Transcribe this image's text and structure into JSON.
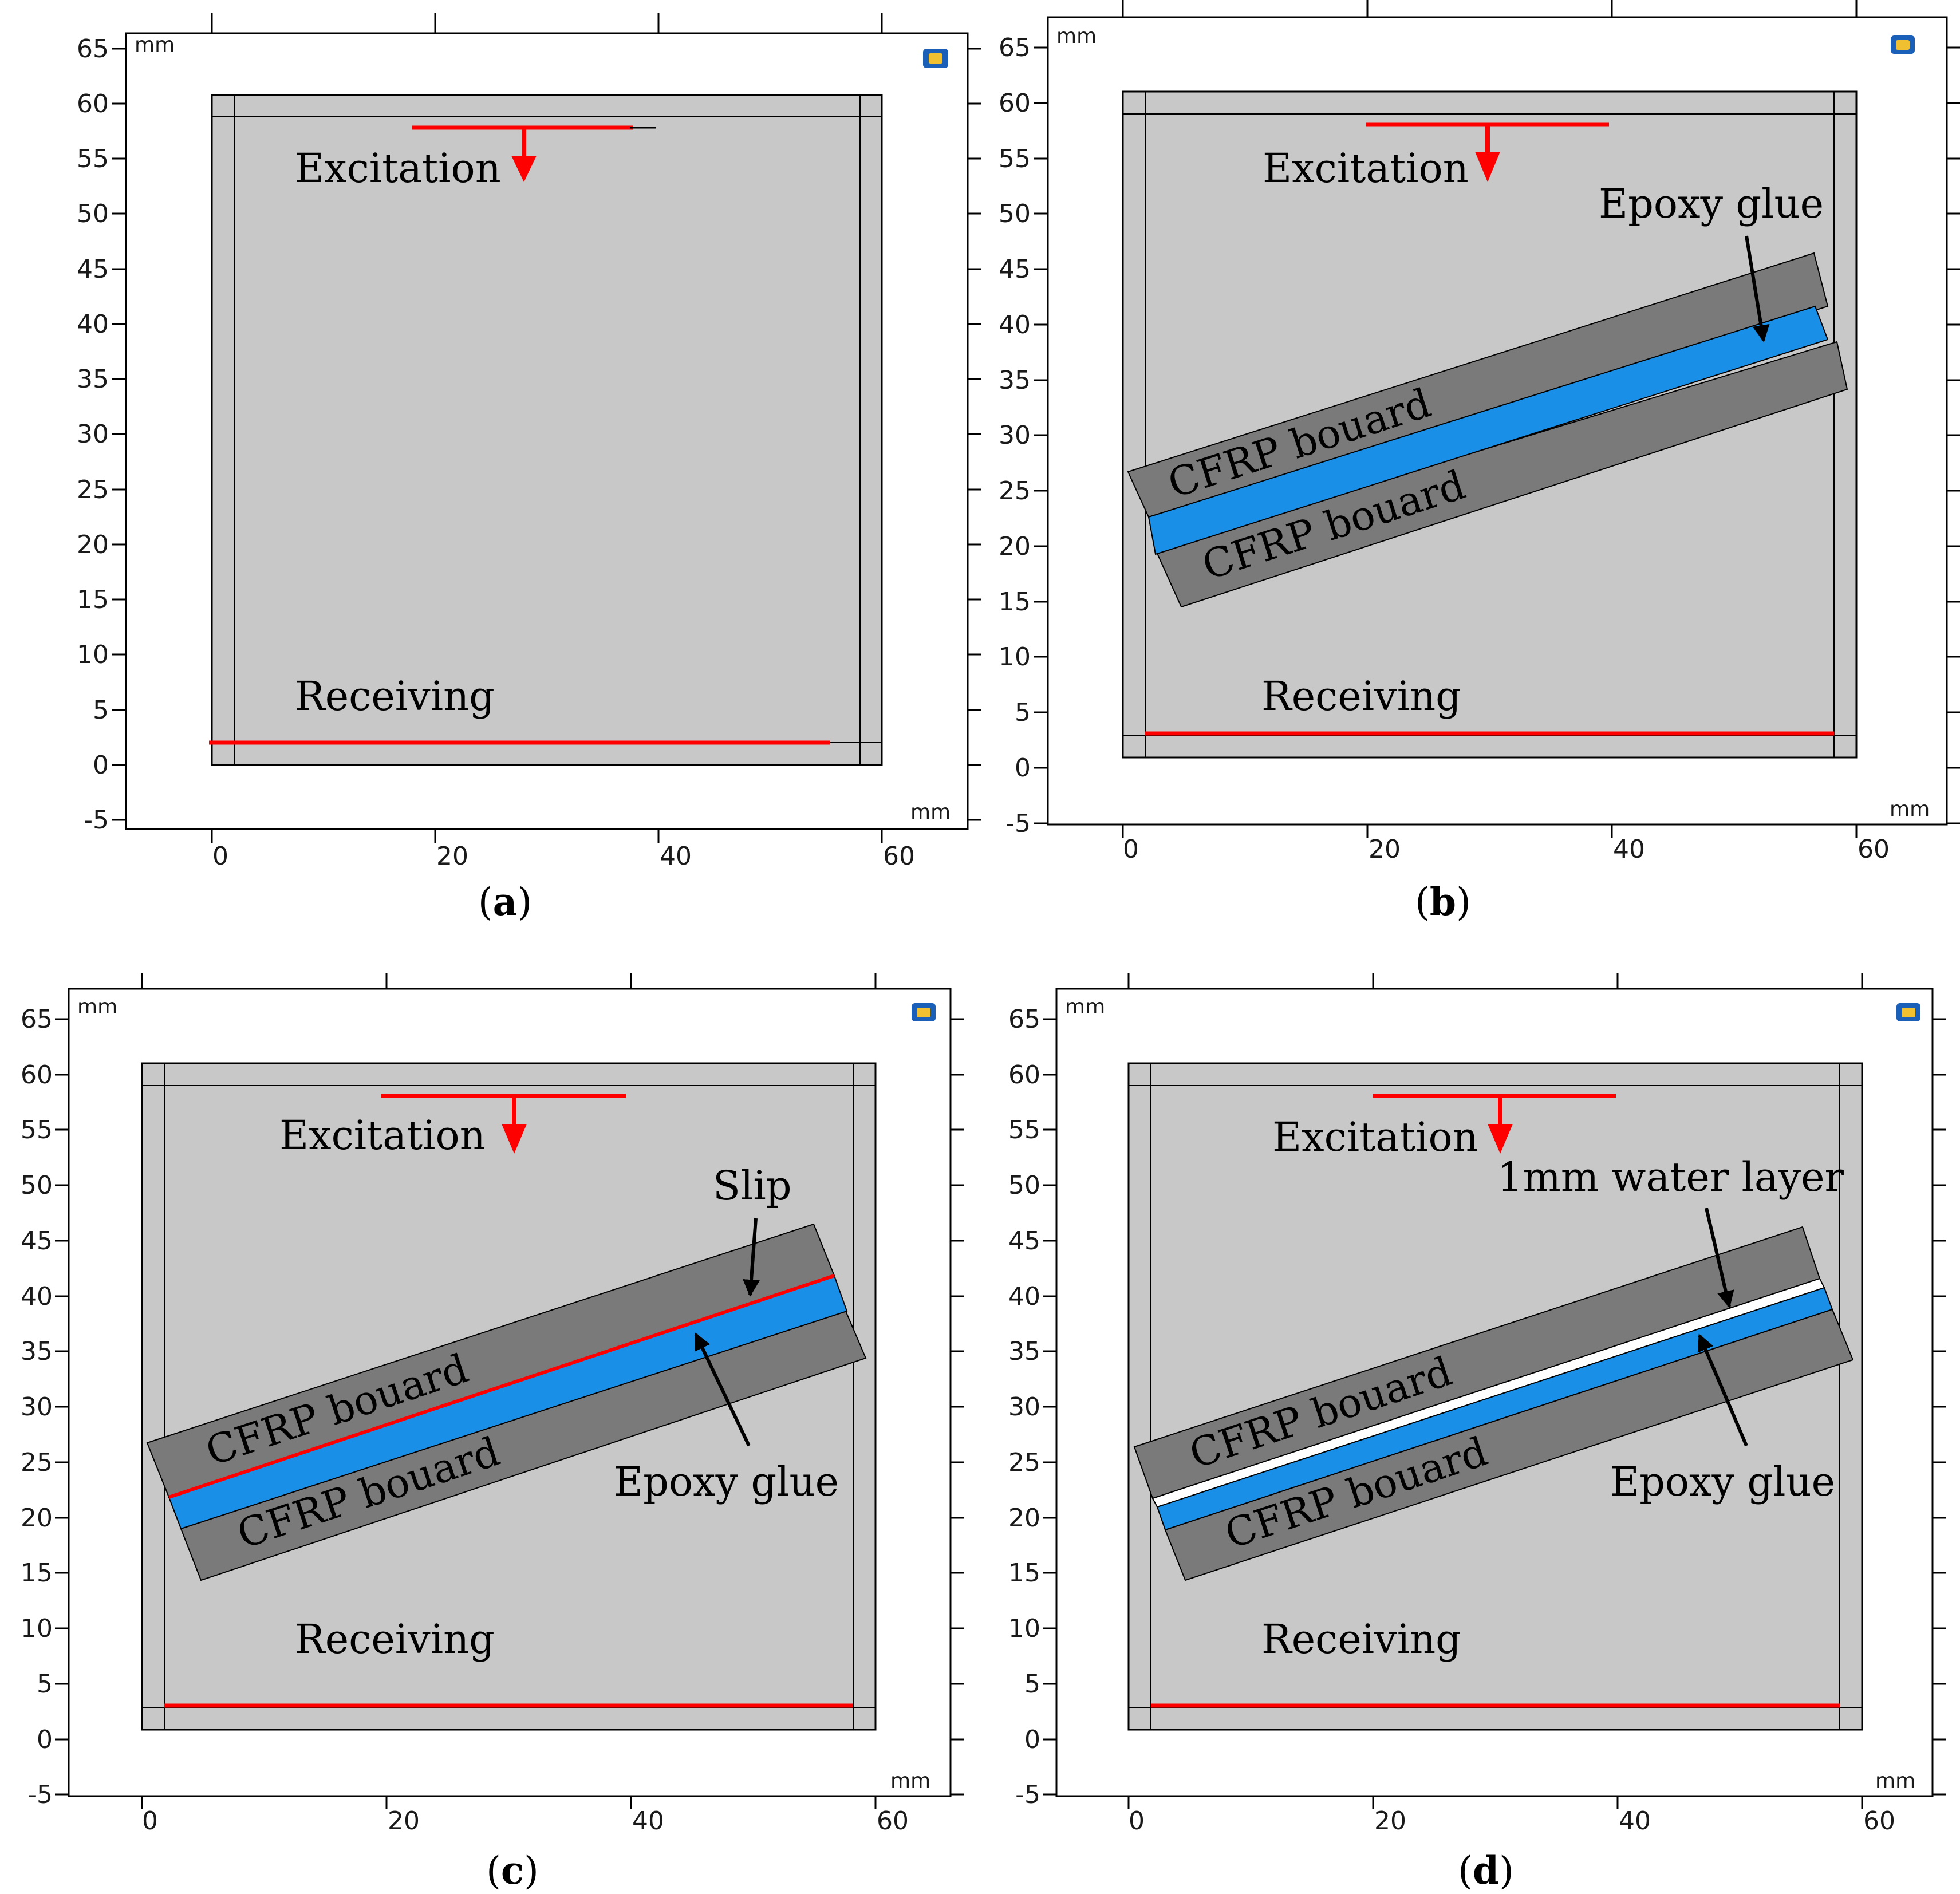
{
  "units": {
    "top_left": "mm",
    "bottom_right": "mm"
  },
  "axis": {
    "x_ticks": [
      0,
      20,
      40,
      60
    ],
    "y_ticks": [
      65,
      60,
      55,
      50,
      45,
      40,
      35,
      30,
      25,
      20,
      15,
      10,
      5,
      0,
      -5
    ],
    "x_range_mm": [
      -7,
      67
    ],
    "y_range_mm": [
      -5.5,
      66.5
    ]
  },
  "colors": {
    "outer_frame": "#ffffff",
    "container": "#c8c8c8",
    "cfrp_board": "#7a7a7a",
    "epoxy_glue": "#1a8fe8",
    "transducer": "#ff0000",
    "arrow_red": "#ff0000",
    "arrow_black": "#000000"
  },
  "panels": [
    {
      "id": "a",
      "caption_open": "(",
      "caption_letter": "a",
      "caption_close": ")",
      "labels": {
        "excitation": "Excitation",
        "receiving": "Receiving"
      },
      "has_cfrp": false
    },
    {
      "id": "b",
      "caption_open": "(",
      "caption_letter": "b",
      "caption_close": ")",
      "labels": {
        "excitation": "Excitation",
        "receiving": "Receiving",
        "epoxy": "Epoxy glue",
        "cfrp_top": "CFRP bouard",
        "cfrp_bottom": "CFRP bouard"
      },
      "has_cfrp": true
    },
    {
      "id": "c",
      "caption_open": "(",
      "caption_letter": "c",
      "caption_close": ")",
      "labels": {
        "excitation": "Excitation",
        "receiving": "Receiving",
        "slip": "Slip",
        "epoxy": "Epoxy glue",
        "cfrp_top": "CFRP bouard",
        "cfrp_bottom": "CFRP bouard"
      },
      "has_cfrp": true
    },
    {
      "id": "d",
      "caption_open": "(",
      "caption_letter": "d",
      "caption_close": ")",
      "labels": {
        "excitation": "Excitation",
        "receiving": "Receiving",
        "water": "1mm water layer",
        "epoxy": "Epoxy glue",
        "cfrp_top": "CFRP bouard",
        "cfrp_bottom": "CFRP bouard"
      },
      "has_cfrp": true
    }
  ]
}
